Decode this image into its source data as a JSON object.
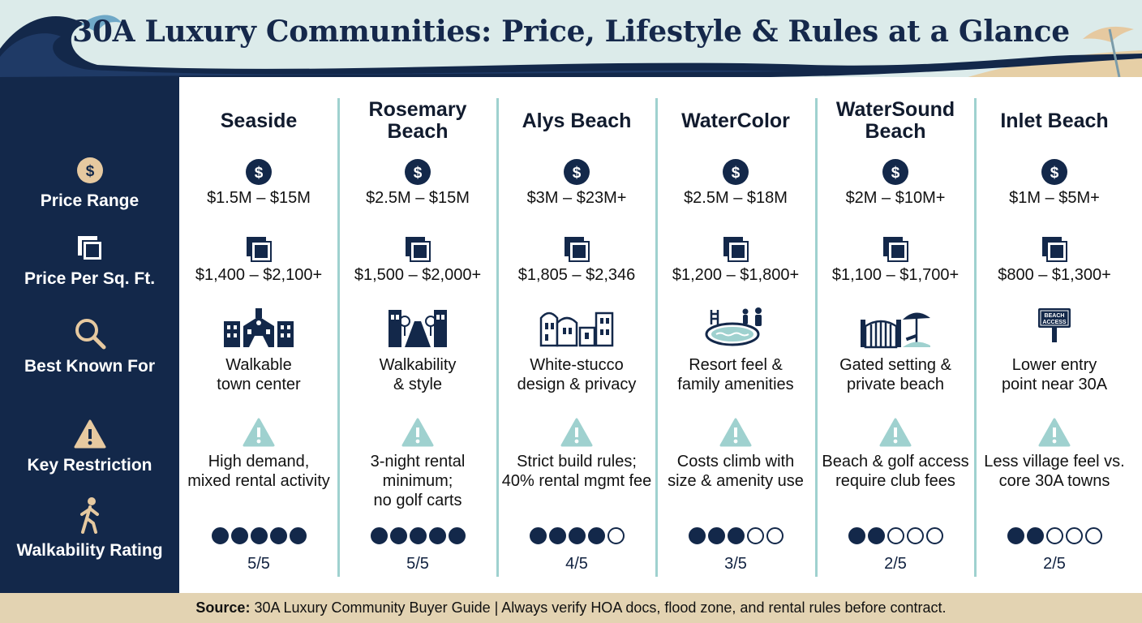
{
  "title": "30A Luxury Communities: Price, Lifestyle & Rules at a Glance",
  "colors": {
    "navy": "#13284a",
    "teal": "#9fd1cf",
    "sand": "#e3d3b2",
    "gold": "#e6c9a0"
  },
  "row_labels": {
    "price": "Price Range",
    "ppsf": "Price Per Sq. Ft.",
    "known": "Best Known For",
    "restriction": "Key Restriction",
    "walk": "Walkability Rating"
  },
  "row_icons": {
    "price": "dollar-icon",
    "ppsf": "square-stack-icon",
    "known": "magnifier-icon",
    "restriction": "warning-icon",
    "walk": "walking-person-icon"
  },
  "communities": [
    {
      "name": "Seaside",
      "price": "$1.5M – $15M",
      "ppsf": "$1,400 – $2,100+",
      "known": [
        "Walkable",
        "town center"
      ],
      "known_icon": "town-hall-icon",
      "restriction": [
        "High demand,",
        "mixed rental activity"
      ],
      "walk_score": 5,
      "walk_label": "5/5"
    },
    {
      "name": "Rosemary Beach",
      "price": "$2.5M – $15M",
      "ppsf": "$1,500 – $2,000+",
      "known": [
        "Walkability",
        "& style"
      ],
      "known_icon": "tree-lined-street-icon",
      "restriction": [
        "3-night rental",
        "minimum;",
        "no golf carts"
      ],
      "walk_score": 5,
      "walk_label": "5/5"
    },
    {
      "name": "Alys Beach",
      "price": "$3M – $23M+",
      "ppsf": "$1,805 – $2,346",
      "known": [
        "White-stucco",
        "design & privacy"
      ],
      "known_icon": "white-buildings-icon",
      "restriction": [
        "Strict build rules;",
        "40% rental mgmt fee"
      ],
      "walk_score": 4,
      "walk_label": "4/5"
    },
    {
      "name": "WaterColor",
      "price": "$2.5M – $18M",
      "ppsf": "$1,200 – $1,800+",
      "known": [
        "Resort feel &",
        "family amenities"
      ],
      "known_icon": "pool-family-icon",
      "restriction": [
        "Costs climb with",
        "size & amenity use"
      ],
      "walk_score": 3,
      "walk_label": "3/5"
    },
    {
      "name": "WaterSound Beach",
      "price": "$2M – $10M+",
      "ppsf": "$1,100 – $1,700+",
      "known": [
        "Gated setting &",
        "private beach"
      ],
      "known_icon": "gate-umbrella-icon",
      "restriction": [
        "Beach & golf access",
        "require club fees"
      ],
      "walk_score": 2,
      "walk_label": "2/5"
    },
    {
      "name": "Inlet Beach",
      "price": "$1M – $5M+",
      "ppsf": "$800 – $1,300+",
      "known": [
        "Lower entry",
        "point near 30A"
      ],
      "known_icon": "beach-access-sign-icon",
      "sign_text": [
        "BEACH",
        "ACCESS"
      ],
      "restriction": [
        "Less village feel vs.",
        "core 30A towns"
      ],
      "walk_score": 2,
      "walk_label": "2/5"
    }
  ],
  "footer": {
    "source_label": "Source:",
    "source_text": "30A Luxury Community Buyer Guide | Always verify HOA docs, flood zone, and rental rules before contract."
  }
}
